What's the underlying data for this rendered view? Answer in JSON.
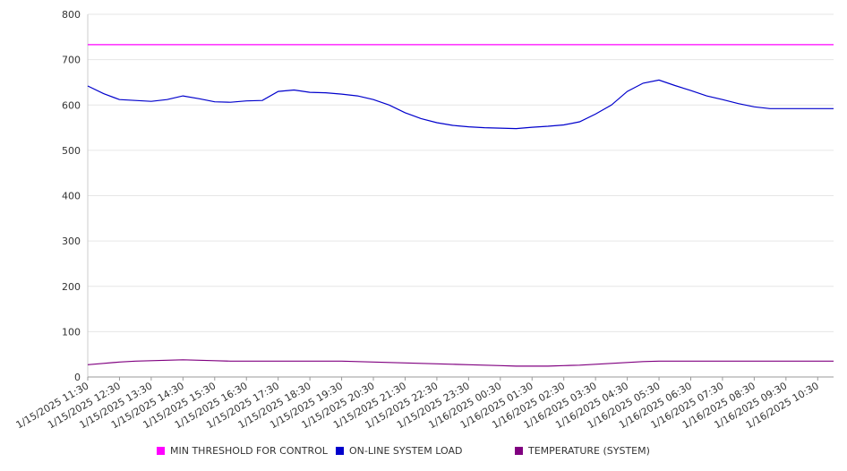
{
  "chart_data": {
    "type": "line",
    "title": "",
    "xlabel": "",
    "ylabel": "",
    "ylim": [
      0,
      800
    ],
    "y_ticks": [
      0,
      100,
      200,
      300,
      400,
      500,
      600,
      700,
      800
    ],
    "grid": true,
    "legend_position": "bottom",
    "x_tick_labels": [
      "1/15/2025 11:30",
      "1/15/2025 12:30",
      "1/15/2025 13:30",
      "1/15/2025 14:30",
      "1/15/2025 15:30",
      "1/15/2025 16:30",
      "1/15/2025 17:30",
      "1/15/2025 18:30",
      "1/15/2025 19:30",
      "1/15/2025 20:30",
      "1/15/2025 21:30",
      "1/15/2025 22:30",
      "1/15/2025 23:30",
      "1/16/2025 00:30",
      "1/16/2025 01:30",
      "1/16/2025 02:30",
      "1/16/2025 03:30",
      "1/16/2025 04:30",
      "1/16/2025 05:30",
      "1/16/2025 06:30",
      "1/16/2025 07:30",
      "1/16/2025 08:30",
      "1/16/2025 09:30",
      "1/16/2025 10:30"
    ],
    "x": [
      "1/15/2025 11:30",
      "1/15/2025 12:00",
      "1/15/2025 12:30",
      "1/15/2025 13:00",
      "1/15/2025 13:30",
      "1/15/2025 14:00",
      "1/15/2025 14:30",
      "1/15/2025 15:00",
      "1/15/2025 15:30",
      "1/15/2025 16:00",
      "1/15/2025 16:30",
      "1/15/2025 17:00",
      "1/15/2025 17:30",
      "1/15/2025 18:00",
      "1/15/2025 18:30",
      "1/15/2025 19:00",
      "1/15/2025 19:30",
      "1/15/2025 20:00",
      "1/15/2025 20:30",
      "1/15/2025 21:00",
      "1/15/2025 21:30",
      "1/15/2025 22:00",
      "1/15/2025 22:30",
      "1/15/2025 23:00",
      "1/15/2025 23:30",
      "1/16/2025 00:00",
      "1/16/2025 00:30",
      "1/16/2025 01:00",
      "1/16/2025 01:30",
      "1/16/2025 02:00",
      "1/16/2025 02:30",
      "1/16/2025 03:00",
      "1/16/2025 03:30",
      "1/16/2025 04:00",
      "1/16/2025 04:30",
      "1/16/2025 05:00",
      "1/16/2025 05:30",
      "1/16/2025 06:00",
      "1/16/2025 06:30",
      "1/16/2025 07:00",
      "1/16/2025 07:30",
      "1/16/2025 08:00",
      "1/16/2025 08:30",
      "1/16/2025 09:00",
      "1/16/2025 09:30",
      "1/16/2025 10:00",
      "1/16/2025 10:30",
      "1/16/2025 11:00"
    ],
    "series": [
      {
        "name": "MIN THRESHOLD FOR CONTROL",
        "color": "#ff00ff",
        "values": [
          733,
          733,
          733,
          733,
          733,
          733,
          733,
          733,
          733,
          733,
          733,
          733,
          733,
          733,
          733,
          733,
          733,
          733,
          733,
          733,
          733,
          733,
          733,
          733,
          733,
          733,
          733,
          733,
          733,
          733,
          733,
          733,
          733,
          733,
          733,
          733,
          733,
          733,
          733,
          733,
          733,
          733,
          733,
          733,
          733,
          733,
          733,
          733
        ]
      },
      {
        "name": "ON-LINE SYSTEM LOAD",
        "color": "#0000cc",
        "values": [
          642,
          625,
          612,
          610,
          608,
          612,
          620,
          614,
          607,
          606,
          609,
          610,
          630,
          633,
          628,
          627,
          624,
          620,
          612,
          600,
          583,
          570,
          561,
          555,
          552,
          550,
          549,
          548,
          551,
          553,
          556,
          563,
          580,
          600,
          630,
          648,
          655,
          643,
          632,
          620,
          612,
          603,
          596,
          592,
          592,
          592,
          592,
          592
        ]
      },
      {
        "name": "TEMPERATURE (SYSTEM)",
        "color": "#800080",
        "values": [
          27,
          30,
          33,
          35,
          36,
          37,
          38,
          37,
          36,
          35,
          35,
          35,
          35,
          35,
          35,
          35,
          35,
          34,
          33,
          32,
          31,
          30,
          29,
          28,
          27,
          26,
          25,
          24,
          24,
          24,
          25,
          26,
          28,
          30,
          32,
          34,
          35,
          35,
          35,
          35,
          35,
          35,
          35,
          35,
          35,
          35,
          35,
          35
        ]
      }
    ]
  }
}
